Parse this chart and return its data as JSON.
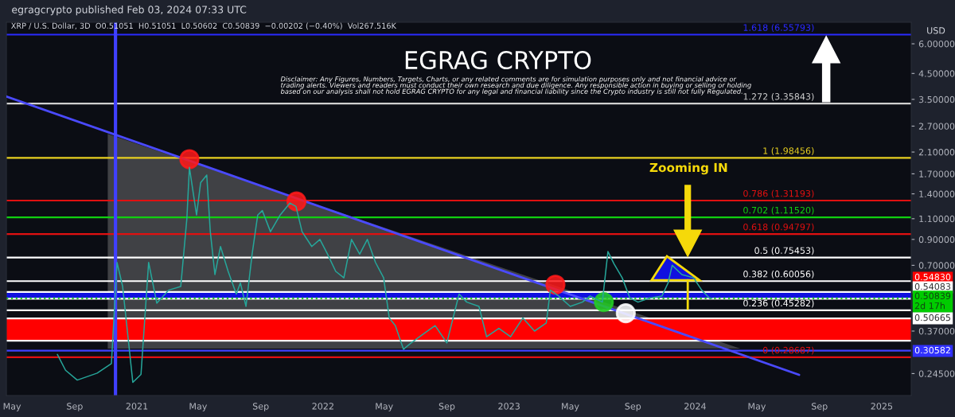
{
  "chart_data": {
    "type": "line",
    "title": "EGRAG CRYPTO",
    "annotations": [
      "egragcrypto published Feb 03, 2024 07:33 UTC",
      "XRP / U.S. Dollar, 3D  O0.51051  H0.51051  L0.50602  C0.50839  −0.00202 (−0.40%)  Vol267.516K",
      "USD",
      "Disclaimer: Any Figures, Numbers, Targets, Charts, or any related comments are for simulation purposes only and not financial advice or\ntrading alerts. Viewers and readers must conduct their own research and due diligence. Any responsible action in buying or selling or holding\nbased on our analysis shall not hold EGRAG CRYPTO for any legal and financial liability since the Crypto industry is still not fully Regulated.",
      "Zooming IN",
      "0.54830",
      "0.54083",
      "0.50839\n2d 17h",
      "0.50665",
      "0.30582"
    ],
    "series": [
      {
        "color": "#26a69a",
        "x": [
          "2020-07-29",
          "2020-08-14",
          "2020-09-06",
          "2020-10-15",
          "2020-11-12",
          "2020-11-23",
          "2020-12-04",
          "2020-12-24",
          "2021-01-09",
          "2021-01-24",
          "2021-02-09",
          "2021-03-04",
          "2021-03-28",
          "2021-04-09",
          "2021-04-14",
          "2021-04-28",
          "2021-05-06",
          "2021-05-18",
          "2021-05-25",
          "2021-06-03",
          "2021-06-14",
          "2021-06-29",
          "2021-07-15",
          "2021-07-23",
          "2021-08-03",
          "2021-08-15",
          "2021-08-26",
          "2021-09-04",
          "2021-09-20",
          "2021-10-09",
          "2021-10-28",
          "2021-11-09",
          "2021-11-21",
          "2021-12-10",
          "2021-12-26",
          "2022-01-10",
          "2022-01-26",
          "2022-02-11",
          "2022-02-26",
          "2022-03-14",
          "2022-03-29",
          "2022-04-14",
          "2022-04-30",
          "2022-05-11",
          "2022-05-23",
          "2022-06-08",
          "2022-06-23",
          "2022-07-17",
          "2022-08-09",
          "2022-09-01",
          "2022-09-25",
          "2022-10-10",
          "2022-11-03",
          "2022-11-18",
          "2022-12-12",
          "2023-01-04",
          "2023-01-28",
          "2023-02-20",
          "2023-03-15",
          "2023-03-23",
          "2023-04-08",
          "2023-05-01",
          "2023-05-25",
          "2023-06-09",
          "2023-07-03",
          "2023-07-14",
          "2023-07-26",
          "2023-08-11",
          "2023-08-26",
          "2023-09-11",
          "2023-10-04",
          "2023-10-28",
          "2023-11-09",
          "2023-11-17",
          "2023-12-06",
          "2023-12-29",
          "2024-01-14",
          "2024-01-29",
          "2024-02-03"
        ],
        "values": [
          0.295,
          0.253,
          0.23,
          0.246,
          0.27,
          0.72,
          0.57,
          0.225,
          0.243,
          0.72,
          0.485,
          0.55,
          0.57,
          1.1,
          1.81,
          1.14,
          1.56,
          1.68,
          0.97,
          0.64,
          0.84,
          0.66,
          0.53,
          0.59,
          0.47,
          0.78,
          1.14,
          1.19,
          0.97,
          1.14,
          1.28,
          1.24,
          0.97,
          0.84,
          0.9,
          0.78,
          0.66,
          0.62,
          0.9,
          0.78,
          0.9,
          0.72,
          0.62,
          0.42,
          0.39,
          0.31,
          0.33,
          0.36,
          0.39,
          0.33,
          0.53,
          0.49,
          0.47,
          0.35,
          0.38,
          0.35,
          0.42,
          0.37,
          0.4,
          0.55,
          0.52,
          0.47,
          0.49,
          0.52,
          0.49,
          0.8,
          0.71,
          0.62,
          0.51,
          0.49,
          0.51,
          0.52,
          0.59,
          0.7,
          0.64,
          0.62,
          0.55,
          0.51,
          0.50839
        ]
      },
      {
        "type": "line",
        "color": "#4a4aff",
        "x": [
          "2020-04-20",
          "2024-07-23"
        ],
        "values": [
          3.6,
          0.242
        ]
      },
      {
        "type": "scatter",
        "colors": [
          "#ff1a1a",
          "#ff1a1a",
          "#ff1a1a",
          "#22cc22",
          "#ffffff"
        ],
        "x": [
          "2021-04-14",
          "2021-11-10",
          "2023-04-02",
          "2023-07-06",
          "2023-08-18"
        ],
        "values": [
          1.96,
          1.3,
          0.58,
          0.49,
          0.44
        ]
      }
    ],
    "xlim": [
      "2020-04-20",
      "2025-02-28"
    ],
    "xticks": [
      {
        "value": "2020-05-01",
        "label": "May"
      },
      {
        "value": "2020-09-01",
        "label": "Sep"
      },
      {
        "value": "2021-01-01",
        "label": "2021"
      },
      {
        "value": "2021-05-01",
        "label": "May"
      },
      {
        "value": "2021-09-01",
        "label": "Sep"
      },
      {
        "value": "2022-01-01",
        "label": "2022"
      },
      {
        "value": "2022-05-01",
        "label": "May"
      },
      {
        "value": "2022-09-01",
        "label": "Sep"
      },
      {
        "value": "2023-01-01",
        "label": "2023"
      },
      {
        "value": "2023-05-01",
        "label": "May"
      },
      {
        "value": "2023-09-01",
        "label": "Sep"
      },
      {
        "value": "2024-01-01",
        "label": "2024"
      },
      {
        "value": "2024-05-01",
        "label": "May"
      },
      {
        "value": "2024-09-01",
        "label": "Sep"
      },
      {
        "value": "2025-01-01",
        "label": "2025"
      }
    ],
    "log": "y",
    "ylim": [
      0.198,
      7.39
    ],
    "yticks": [
      {
        "value": 6,
        "label": "6.00000"
      },
      {
        "value": 4.5,
        "label": "4.50000"
      },
      {
        "value": 3.5,
        "label": "3.50000"
      },
      {
        "value": 2.7,
        "label": "2.70000"
      },
      {
        "value": 2.1,
        "label": "2.10000"
      },
      {
        "value": 1.7,
        "label": "1.70000"
      },
      {
        "value": 1.4,
        "label": "1.40000"
      },
      {
        "value": 1.1,
        "label": "1.10000"
      },
      {
        "value": 0.9,
        "label": "0.90000"
      },
      {
        "value": 0.7,
        "label": "0.70000"
      },
      {
        "value": 0.37,
        "label": "0.37000"
      },
      {
        "value": 0.245,
        "label": "0.24500"
      }
    ],
    "ref_lines": [
      {
        "axis": "y",
        "value": 6.55793,
        "label": "1.618 (6.55793)",
        "color": "#2a2aff"
      },
      {
        "axis": "y",
        "value": 3.35843,
        "label": "1.272 (3.35843)",
        "color": "#d0d0d0"
      },
      {
        "axis": "y",
        "value": 1.98456,
        "label": "1 (1.98456)",
        "color": "#e8d020"
      },
      {
        "axis": "y",
        "value": 1.31193,
        "label": "0.786 (1.31193)",
        "color": "#e01010"
      },
      {
        "axis": "y",
        "value": 1.1152,
        "label": "0.702 (1.11520)",
        "color": "#10d010"
      },
      {
        "axis": "y",
        "value": 0.94797,
        "label": "0.618 (0.94797)",
        "color": "#e01010"
      },
      {
        "axis": "y",
        "value": 0.75453,
        "label": "0.5 (0.75453)",
        "color": "#ffffff"
      },
      {
        "axis": "y",
        "value": 0.60056,
        "label": "0.382 (0.60056)",
        "color": "#ffffff"
      },
      {
        "axis": "y",
        "value": 0.45282,
        "label": "0.236 (0.45282)",
        "color": "#ffffff"
      },
      {
        "axis": "y",
        "value": 0.28687,
        "label": "0 (0.28687)",
        "color": "#e01010"
      },
      {
        "axis": "y",
        "value": 0.54083,
        "color": "#ffffff"
      },
      {
        "axis": "y",
        "value": 0.50665,
        "color": "#ffffff"
      },
      {
        "axis": "y",
        "value": 0.50839,
        "color": "#22cc22",
        "line_style": "dotted"
      },
      {
        "axis": "y",
        "value": 0.418,
        "color": "#ffffff"
      },
      {
        "axis": "y",
        "value": 0.337,
        "color": "#ffffff"
      },
      {
        "axis": "y",
        "value": 0.30582,
        "color": "#4040ff"
      },
      {
        "axis": "x",
        "value": "2020-11-20",
        "color": "#4040ff"
      }
    ],
    "bands": [
      {
        "axis": "y",
        "from": 0.50665,
        "to": 0.54083,
        "color": "#1010e0"
      },
      {
        "axis": "y",
        "from": 0.337,
        "to": 0.418,
        "color": "#ff0000"
      }
    ],
    "grid": false,
    "legend": false
  }
}
